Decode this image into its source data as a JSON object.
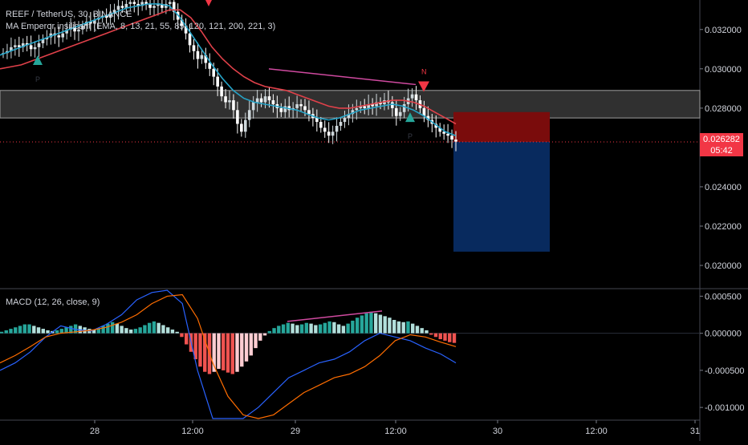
{
  "header": {
    "symbol_line": "REEF / TetherUS, 30, BINANCE",
    "ma_line": "MA Emperor insilicant (EMA, 8, 13, 21, 55, 89, 120, 121, 200, 221, 3)",
    "macd_line": "MACD (12, 26, close, 9)"
  },
  "price_tag": {
    "price": "0.026282",
    "countdown": "05:42"
  },
  "colors": {
    "background": "#000000",
    "bull": "#cfd8dc",
    "bear": "#ffffff",
    "ema_fast": "#26a5c9",
    "ema_slow": "#e0414a",
    "zone": "#6a6a6a",
    "stop_box": "#7a0c0c",
    "target_box": "#082a5e",
    "hist_up_strong": "#26a69a",
    "hist_up_weak": "#b2dfdb",
    "hist_down_strong": "#ef5350",
    "hist_down_weak": "#ffcdd2",
    "macd_line": "#2962ff",
    "signal_line": "#ff6d00",
    "divergence": "#d04aa0",
    "current_price": "#f23645"
  },
  "chart_data": [
    {
      "type": "candlestick",
      "title": "REEF / TetherUS, 30, BINANCE",
      "ylim": [
        0.0189,
        0.0335
      ],
      "y_ticks": [
        "0.032000",
        "0.030000",
        "0.028000",
        "0.026000",
        "0.024000",
        "0.022000",
        "0.020000"
      ],
      "y_tick_values": [
        0.032,
        0.03,
        0.028,
        0.026,
        0.024,
        0.022,
        0.02
      ],
      "x_ticks": [
        "28",
        "12:00",
        "29",
        "12:00",
        "30",
        "12:00",
        "31"
      ],
      "close_series": [
        0.0308,
        0.0309,
        0.0311,
        0.0312,
        0.0311,
        0.0313,
        0.0312,
        0.031,
        0.0311,
        0.0313,
        0.0315,
        0.0316,
        0.0318,
        0.0317,
        0.0316,
        0.0318,
        0.032,
        0.0321,
        0.0319,
        0.032,
        0.0322,
        0.0324,
        0.0323,
        0.0325,
        0.0326,
        0.0327,
        0.0326,
        0.0328,
        0.033,
        0.0332,
        0.0331,
        0.0333,
        0.0334,
        0.0333,
        0.0332,
        0.0334,
        0.0333,
        0.0331,
        0.0332,
        0.0333,
        0.0331,
        0.0333,
        0.0334,
        0.0329,
        0.0325,
        0.0322,
        0.0318,
        0.0312,
        0.0309,
        0.0305,
        0.0307,
        0.0303,
        0.03,
        0.0296,
        0.0291,
        0.0286,
        0.0283,
        0.0284,
        0.0279,
        0.0272,
        0.0268,
        0.0274,
        0.0279,
        0.0283,
        0.0285,
        0.0283,
        0.0286,
        0.0284,
        0.0282,
        0.028,
        0.0278,
        0.0281,
        0.0279,
        0.028,
        0.0282,
        0.0281,
        0.0279,
        0.0277,
        0.0275,
        0.0273,
        0.027,
        0.0268,
        0.0266,
        0.0268,
        0.0271,
        0.0273,
        0.0275,
        0.0277,
        0.0279,
        0.028,
        0.0281,
        0.028,
        0.0282,
        0.0281,
        0.0283,
        0.0282,
        0.0284,
        0.0283,
        0.028,
        0.0276,
        0.0278,
        0.0282,
        0.0285,
        0.0287,
        0.0284,
        0.028,
        0.0276,
        0.0274,
        0.0272,
        0.027,
        0.0268,
        0.0267,
        0.0266,
        0.0264,
        0.0263
      ],
      "series": [
        {
          "name": "EMA fast",
          "values": [
            0.0307,
            0.0309,
            0.0311,
            0.0313,
            0.0315,
            0.0317,
            0.0319,
            0.0321,
            0.0323,
            0.0325,
            0.0327,
            0.0329,
            0.0331,
            0.0332,
            0.0333,
            0.0333,
            0.0332,
            0.0326,
            0.0318,
            0.031,
            0.0302,
            0.0295,
            0.0289,
            0.0285,
            0.0283,
            0.0282,
            0.0281,
            0.028,
            0.0279,
            0.0277,
            0.0275,
            0.0274,
            0.0275,
            0.0277,
            0.0279,
            0.028,
            0.0281,
            0.0282,
            0.0281,
            0.0279,
            0.0276,
            0.0272,
            0.0268,
            0.0266
          ]
        },
        {
          "name": "EMA slow",
          "values": [
            0.03,
            0.0301,
            0.0302,
            0.0304,
            0.0306,
            0.0308,
            0.031,
            0.0312,
            0.0314,
            0.0316,
            0.0318,
            0.032,
            0.0322,
            0.0324,
            0.0326,
            0.0328,
            0.033,
            0.033,
            0.0326,
            0.0319,
            0.0311,
            0.0305,
            0.03,
            0.0296,
            0.0293,
            0.0291,
            0.029,
            0.0289,
            0.0287,
            0.0285,
            0.0283,
            0.0281,
            0.028,
            0.028,
            0.0281,
            0.0282,
            0.0283,
            0.0284,
            0.0284,
            0.0283,
            0.0281,
            0.0278,
            0.0275,
            0.0272
          ]
        }
      ],
      "resistance_zone": [
        0.0275,
        0.0289
      ],
      "current_price": 0.026282,
      "position": {
        "stop": 0.0278,
        "entry": 0.026282,
        "target": 0.0207
      },
      "divergence_line": [
        0.03,
        0.0292
      ],
      "signals": [
        {
          "label": "P",
          "direction": "up",
          "price": 0.0304
        },
        {
          "label": "N",
          "direction": "down",
          "price": 0.0292
        },
        {
          "label": "P",
          "direction": "up",
          "price": 0.0275
        }
      ]
    },
    {
      "type": "bar",
      "title": "MACD (12, 26, close, 9)",
      "ylim": [
        -0.00115,
        0.00058
      ],
      "y_ticks": [
        "0.000500",
        "0.000000",
        "-0.000500",
        "-0.001000"
      ],
      "y_tick_values": [
        0.0005,
        0.0,
        -0.0005,
        -0.001
      ],
      "histogram": [
        2e-05,
        4e-05,
        6e-05,
        8e-05,
        0.0001,
        0.00012,
        0.00012,
        0.0001,
        8e-05,
        6e-05,
        4e-05,
        3e-05,
        4e-05,
        6e-05,
        8e-05,
        0.0001,
        0.00012,
        0.0001,
        8e-05,
        6e-05,
        5e-05,
        7e-05,
        0.0001,
        0.00013,
        0.00015,
        0.00013,
        0.0001,
        7e-05,
        5e-05,
        6e-05,
        8e-05,
        0.00011,
        0.00014,
        0.00016,
        0.00014,
        0.00011,
        8e-05,
        5e-05,
        2e-05,
        -5e-05,
        -0.00015,
        -0.00025,
        -0.00035,
        -0.00045,
        -0.00052,
        -0.00055,
        -0.00052,
        -0.00048,
        -0.0005,
        -0.00053,
        -0.00055,
        -0.00052,
        -0.00045,
        -0.00038,
        -0.0003,
        -0.0002,
        -0.0001,
        -3e-05,
        3e-05,
        7e-05,
        0.0001,
        0.00012,
        0.00014,
        0.00013,
        0.00011,
        0.00012,
        0.00014,
        0.00013,
        0.00011,
        0.00012,
        0.00014,
        0.00016,
        0.00015,
        0.00012,
        0.0001,
        0.00013,
        0.00017,
        0.00021,
        0.00024,
        0.00027,
        0.00029,
        0.00027,
        0.00025,
        0.00023,
        0.00021,
        0.00018,
        0.00016,
        0.00015,
        0.00016,
        0.00013,
        0.0001,
        7e-05,
        4e-05,
        -2e-05,
        -5e-05,
        -8e-05,
        -0.0001,
        -0.00012,
        -0.00013
      ],
      "macd": [
        -0.0005,
        -0.0004,
        -0.00025,
        -5e-05,
        0.0001,
        5e-05,
        3e-05,
        0.00012,
        0.00025,
        0.00045,
        0.00055,
        0.00058,
        0.0004,
        -0.0005,
        -0.00115,
        -0.00115,
        -0.00115,
        -0.001,
        -0.0008,
        -0.0006,
        -0.0005,
        -0.0004,
        -0.00035,
        -0.00025,
        -0.0001,
        0.0,
        -5e-05,
        -0.0001,
        -0.0002,
        -0.00028,
        -0.0004
      ],
      "signal": [
        -0.0004,
        -0.0003,
        -0.00018,
        -5e-05,
        0.0,
        2e-05,
        4e-05,
        8e-05,
        0.00015,
        0.00025,
        0.0004,
        0.0005,
        0.00052,
        0.0002,
        -0.0004,
        -0.00085,
        -0.0011,
        -0.00115,
        -0.0011,
        -0.00095,
        -0.0008,
        -0.0007,
        -0.0006,
        -0.00055,
        -0.00045,
        -0.0003,
        -0.0001,
        -2e-05,
        -5e-05,
        -0.00012,
        -0.00018
      ]
    }
  ]
}
